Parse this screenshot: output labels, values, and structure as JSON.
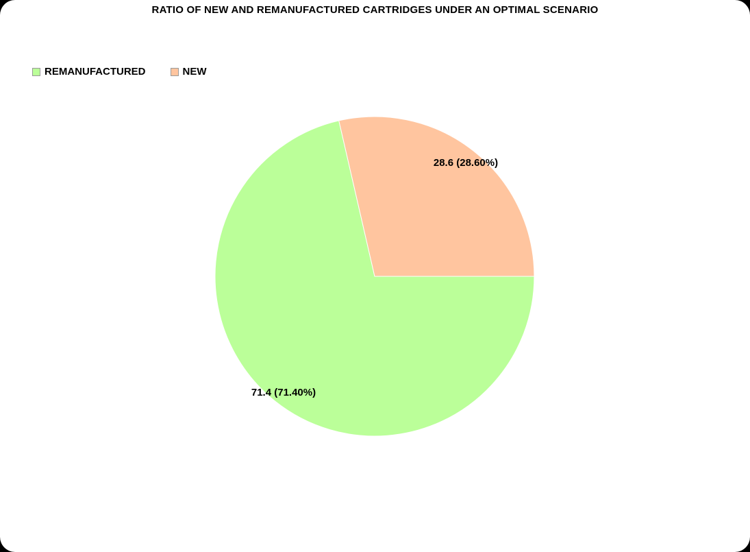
{
  "chart_data": {
    "type": "pie",
    "title": "RATIO OF NEW AND REMANUFACTURED CARTRIDGES UNDER AN OPTIMAL SCENARIO",
    "legend_position": "top-left",
    "categories": [
      "REMANUFACTURED",
      "NEW"
    ],
    "values": [
      71.4,
      28.6
    ],
    "percentages": [
      "71.40%",
      "28.60%"
    ],
    "slice_labels": [
      "71.4 (71.40%)",
      "28.6 (28.60%)"
    ],
    "colors": [
      "#bbff99",
      "#ffc59f"
    ]
  }
}
